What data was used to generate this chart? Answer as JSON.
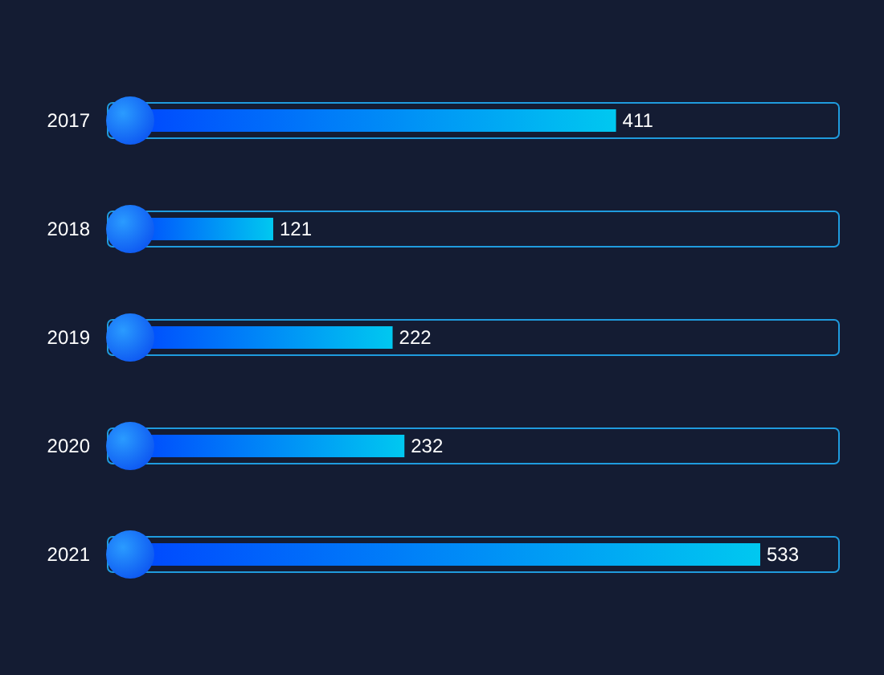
{
  "chart_data": {
    "type": "bar",
    "orientation": "horizontal",
    "categories": [
      "2017",
      "2018",
      "2019",
      "2020",
      "2021"
    ],
    "values": [
      411,
      121,
      222,
      232,
      533
    ],
    "color": "#00c8f0",
    "data_labels": true
  }
}
